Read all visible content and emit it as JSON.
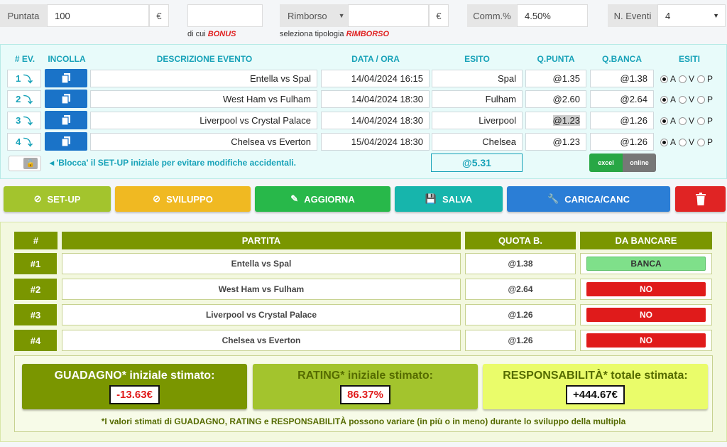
{
  "top": {
    "puntata_label": "Puntata",
    "puntata_value": "100",
    "currency": "€",
    "bonus_prefix": "di cui",
    "bonus_word": "BONUS",
    "rimborso_label": "Rimborso",
    "rimborso_prefix": "seleziona tipologia",
    "rimborso_word": "RIMBORSO",
    "comm_label": "Comm.%",
    "comm_value": "4.50%",
    "eventi_label": "N. Eventi",
    "eventi_value": "4"
  },
  "grid": {
    "headers": [
      "# EV.",
      "INCOLLA",
      "DESCRIZIONE EVENTO",
      "DATA / ORA",
      "ESITO",
      "Q.PUNTA",
      "Q.BANCA",
      "ESITI"
    ],
    "rows": [
      {
        "ev": "1",
        "desc": "Entella vs Spal",
        "date": "14/04/2024 16:15",
        "esito": "Spal",
        "qp": "@1.35",
        "qb": "@1.38"
      },
      {
        "ev": "2",
        "desc": "West Ham vs Fulham",
        "date": "14/04/2024 18:30",
        "esito": "Fulham",
        "qp": "@2.60",
        "qb": "@2.64"
      },
      {
        "ev": "3",
        "desc": "Liverpool vs Crystal Palace",
        "date": "14/04/2024 18:30",
        "esito": "Liverpool",
        "qp": "@1.23",
        "qb": "@1.26"
      },
      {
        "ev": "4",
        "desc": "Chelsea vs Everton",
        "date": "15/04/2024 18:30",
        "esito": "Chelsea",
        "qp": "@1.23",
        "qb": "@1.26"
      }
    ],
    "esiti": [
      "A",
      "V",
      "P"
    ],
    "lock_hint": "'Blocca' il SET-UP iniziale per evitare modifiche accidentali.",
    "total": "@5.31",
    "toggle_left": "excel",
    "toggle_right": "online"
  },
  "buttons": {
    "setup": "SET-UP",
    "sviluppo": "SVILUPPO",
    "aggiorna": "AGGIORNA",
    "salva": "SALVA",
    "carica": "CARICA/CANC"
  },
  "bank": {
    "headers": [
      "#",
      "PARTITA",
      "QUOTA B.",
      "DA BANCARE"
    ],
    "rows": [
      {
        "n": "#1",
        "partita": "Entella vs Spal",
        "quota": "@1.38",
        "action": "BANCA"
      },
      {
        "n": "#2",
        "partita": "West Ham vs Fulham",
        "quota": "@2.64",
        "action": "NO"
      },
      {
        "n": "#3",
        "partita": "Liverpool vs Crystal Palace",
        "quota": "@1.26",
        "action": "NO"
      },
      {
        "n": "#4",
        "partita": "Chelsea vs Everton",
        "quota": "@1.26",
        "action": "NO"
      }
    ]
  },
  "summary": {
    "guadagno_label": "GUADAGNO* iniziale stimato:",
    "guadagno_value": "-13.63€",
    "rating_label": "RATING* iniziale stimato:",
    "rating_value": "86.37%",
    "resp_label": "RESPONSABILITÀ* totale stimata:",
    "resp_value": "+444.67€",
    "footnote": "*I valori stimati di GUADAGNO, RATING e RESPONSABILITÀ possono variare (in più o in meno) durante lo sviluppo della multipla"
  },
  "colors": {
    "teal": "#17a2b8",
    "blue": "#1a73c8",
    "olive": "#7a9600",
    "red": "#e01b1b",
    "green_banca": "#7fe08a"
  }
}
